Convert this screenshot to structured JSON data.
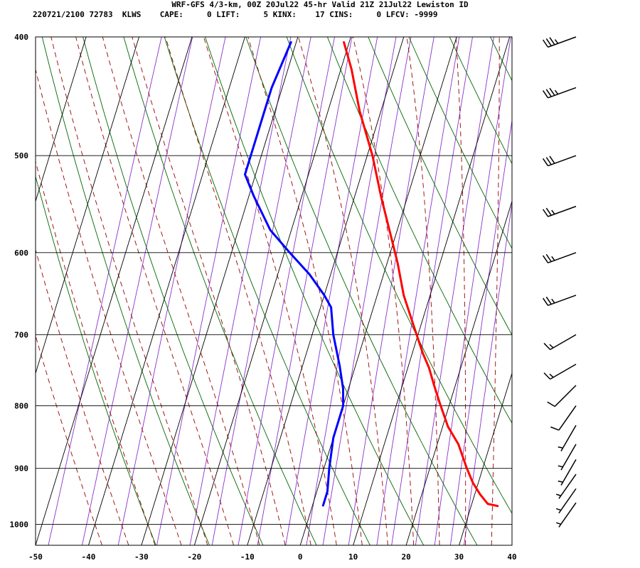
{
  "header": {
    "line1": "WRF-GFS 4/3-km, 00Z 20Jul22 45-hr Valid 21Z 21Jul22 Lewiston ID",
    "line2": "220721/2100 72783  KLWS    CAPE:     0 LIFT:     5 KINX:    17 CINS:     0 LFCV: -9999"
  },
  "chart_data": {
    "type": "line",
    "xlim": [
      -50,
      40
    ],
    "ylim": [
      1040,
      400
    ],
    "y_scale": "log",
    "x_ticks": [
      "-50",
      "-40",
      "-30",
      "-20",
      "-10",
      "0",
      "10",
      "20",
      "30",
      "40"
    ],
    "y_ticks": [
      "400",
      "500",
      "600",
      "700",
      "800",
      "900",
      "1000"
    ],
    "grid": true,
    "series": [
      {
        "color": "#ff0000",
        "points": [
          [
            -21,
            404
          ],
          [
            -18,
            425
          ],
          [
            -14,
            460
          ],
          [
            -9,
            500
          ],
          [
            -5,
            540
          ],
          [
            -1,
            580
          ],
          [
            2,
            612
          ],
          [
            5,
            650
          ],
          [
            9,
            692
          ],
          [
            12,
            725
          ],
          [
            14,
            745
          ],
          [
            16,
            770
          ],
          [
            18,
            795
          ],
          [
            21,
            832
          ],
          [
            24,
            860
          ],
          [
            27,
            900
          ],
          [
            29,
            925
          ],
          [
            31,
            945
          ],
          [
            33,
            962
          ],
          [
            35,
            966
          ]
        ]
      },
      {
        "color": "#0000ff",
        "points": [
          [
            -31,
            404
          ],
          [
            -32,
            440
          ],
          [
            -32,
            462
          ],
          [
            -32,
            490
          ],
          [
            -32,
            518
          ],
          [
            -29,
            540
          ],
          [
            -24,
            575
          ],
          [
            -19,
            600
          ],
          [
            -14,
            625
          ],
          [
            -10,
            650
          ],
          [
            -8,
            665
          ],
          [
            -6,
            700
          ],
          [
            -3,
            742
          ],
          [
            -1,
            775
          ],
          [
            0,
            800
          ],
          [
            0,
            850
          ],
          [
            1,
            900
          ],
          [
            2,
            940
          ],
          [
            2,
            962
          ],
          [
            2,
            965
          ]
        ]
      }
    ],
    "wind_barbs": [
      {
        "p": 400,
        "dir": 250,
        "speed": 35
      },
      {
        "p": 440,
        "dir": 250,
        "speed": 35
      },
      {
        "p": 500,
        "dir": 250,
        "speed": 30
      },
      {
        "p": 550,
        "dir": 250,
        "speed": 25
      },
      {
        "p": 600,
        "dir": 250,
        "speed": 25
      },
      {
        "p": 650,
        "dir": 250,
        "speed": 25
      },
      {
        "p": 700,
        "dir": 240,
        "speed": 15
      },
      {
        "p": 740,
        "dir": 240,
        "speed": 15
      },
      {
        "p": 770,
        "dir": 225,
        "speed": 10
      },
      {
        "p": 800,
        "dir": 215,
        "speed": 10
      },
      {
        "p": 830,
        "dir": 210,
        "speed": 5
      },
      {
        "p": 860,
        "dir": 210,
        "speed": 5
      },
      {
        "p": 885,
        "dir": 210,
        "speed": 5
      },
      {
        "p": 910,
        "dir": 215,
        "speed": 5
      },
      {
        "p": 935,
        "dir": 215,
        "speed": 5
      },
      {
        "p": 960,
        "dir": 215,
        "speed": 5
      }
    ],
    "background_lines": {
      "isotherm_color": "#000000",
      "dry_adiabat_color": "#006600",
      "moist_adiabat_color": "#990000",
      "mixing_ratio_color": "#8833cc"
    }
  }
}
